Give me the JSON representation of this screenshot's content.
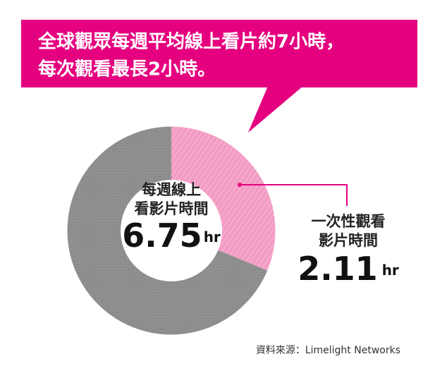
{
  "chart_data": {
    "type": "pie",
    "title": [
      "全球觀眾每週平均線上看片約7小時，",
      "每次觀看最長2小時。"
    ],
    "total_label": [
      "每週線上",
      "看影片時間"
    ],
    "total": 6.75,
    "part_label": [
      "一次性觀看",
      "影片時間"
    ],
    "part": 2.11,
    "unit": "hr",
    "colors": {
      "title_box": "#e5007f",
      "total": "#8c8c8c",
      "part": "#f39cc3",
      "leader": "#e5007f"
    },
    "source": "資料來源：Limelight Networks"
  }
}
